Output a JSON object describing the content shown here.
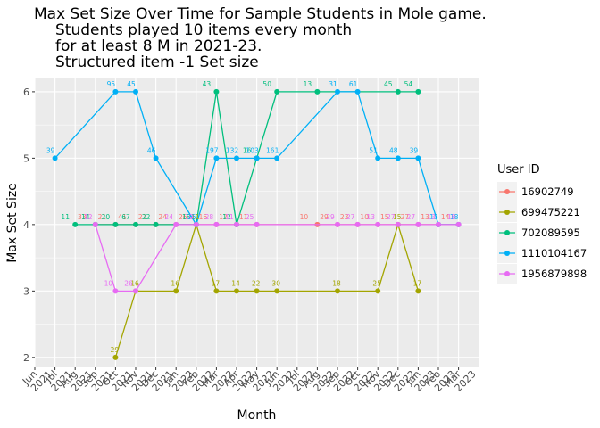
{
  "chart_data": {
    "type": "line",
    "title_lines": [
      "Max Set Size Over Time for Sample Students in Mole game.",
      "Students played 10 items every month",
      "for at least 8 M in 2021-23.",
      "Structured item -1 Set size"
    ],
    "xlabel": "Month",
    "ylabel": "Max Set Size",
    "ylim": [
      1.85,
      6.2
    ],
    "y_ticks": [
      2,
      3,
      4,
      5,
      6
    ],
    "x_ticks": [
      "2021-06",
      "2021-07",
      "2021-08",
      "2021-09",
      "2021-10",
      "2021-11",
      "2021-12",
      "2022-01",
      "2022-02",
      "2022-03",
      "2022-04",
      "2022-05",
      "2022-06",
      "2022-07",
      "2022-08",
      "2022-09",
      "2022-10",
      "2022-11",
      "2022-12",
      "2023-01",
      "2023-02",
      "2023-03"
    ],
    "x_tick_labels": [
      "Jun 2021",
      "Jul 2021",
      "Aug 2021",
      "Sep 2021",
      "Oct 2021",
      "Nov 2021",
      "Dec 2021",
      "Jan 2022",
      "Feb 2022",
      "Mar 2022",
      "Apr 2022",
      "May 2022",
      "Jun 2022",
      "Jul 2022",
      "Aug 2022",
      "Sep 2022",
      "Oct 2022",
      "Nov 2022",
      "Dec 2022",
      "Jan 2023",
      "Feb 2023",
      "Mar 2023"
    ],
    "grid": true,
    "legend": {
      "title": "User ID",
      "position": "right"
    },
    "series": [
      {
        "name": "16902749",
        "color": "#F8766D",
        "points": [
          {
            "x": "2021-09",
            "y": 4,
            "label": "33"
          },
          {
            "x": "2021-10",
            "y": 4,
            "label": "21"
          },
          {
            "x": "2021-11",
            "y": 4,
            "label": "41"
          },
          {
            "x": "2021-12",
            "y": 4,
            "label": "21"
          },
          {
            "x": "2022-01",
            "y": 4,
            "label": "24"
          },
          {
            "x": "2022-02",
            "y": 4,
            "label": "26"
          },
          {
            "x": "2022-03",
            "y": 4,
            "label": "16"
          },
          {
            "x": "2022-04",
            "y": 4,
            "label": "12"
          },
          {
            "x": "2022-05",
            "y": 4,
            "label": "11"
          },
          {
            "x": "2022-08",
            "y": 4,
            "label": "10"
          },
          {
            "x": "2022-09",
            "y": 4,
            "label": "29"
          },
          {
            "x": "2022-10",
            "y": 4,
            "label": "23"
          },
          {
            "x": "2022-11",
            "y": 4,
            "label": "10"
          },
          {
            "x": "2022-12",
            "y": 4,
            "label": "15"
          },
          {
            "x": "2023-01",
            "y": 4,
            "label": "27"
          },
          {
            "x": "2023-02",
            "y": 4,
            "label": "13"
          },
          {
            "x": "2023-03",
            "y": 4,
            "label": "14"
          }
        ]
      },
      {
        "name": "699475221",
        "color": "#A3A500",
        "points": [
          {
            "x": "2021-10",
            "y": 2,
            "label": "29"
          },
          {
            "x": "2021-11",
            "y": 3,
            "label": "16"
          },
          {
            "x": "2022-01",
            "y": 3,
            "label": "16"
          },
          {
            "x": "2022-02",
            "y": 4,
            "label": "11"
          },
          {
            "x": "2022-03",
            "y": 3,
            "label": "17"
          },
          {
            "x": "2022-04",
            "y": 3,
            "label": "14"
          },
          {
            "x": "2022-05",
            "y": 3,
            "label": "22"
          },
          {
            "x": "2022-06",
            "y": 3,
            "label": "30"
          },
          {
            "x": "2022-09",
            "y": 3,
            "label": "18"
          },
          {
            "x": "2022-11",
            "y": 3,
            "label": "25"
          },
          {
            "x": "2022-12",
            "y": 4,
            "label": "15"
          },
          {
            "x": "2023-01",
            "y": 3,
            "label": "17"
          }
        ]
      },
      {
        "name": "702089595",
        "color": "#00BF7D",
        "points": [
          {
            "x": "2021-08",
            "y": 4,
            "label": "11"
          },
          {
            "x": "2021-09",
            "y": 4,
            "label": "14"
          },
          {
            "x": "2021-10",
            "y": 4,
            "label": "20"
          },
          {
            "x": "2021-11",
            "y": 4,
            "label": "67"
          },
          {
            "x": "2021-12",
            "y": 4,
            "label": "22"
          },
          {
            "x": "2022-02",
            "y": 4,
            "label": "18"
          },
          {
            "x": "2022-03",
            "y": 6,
            "label": "43"
          },
          {
            "x": "2022-04",
            "y": 4,
            "label": "12"
          },
          {
            "x": "2022-05",
            "y": 5,
            "label": "16"
          },
          {
            "x": "2022-06",
            "y": 6,
            "label": "50"
          },
          {
            "x": "2022-08",
            "y": 6,
            "label": "13"
          },
          {
            "x": "2022-12",
            "y": 6,
            "label": "45"
          },
          {
            "x": "2023-01",
            "y": 6,
            "label": "54"
          }
        ]
      },
      {
        "name": "1110104167",
        "color": "#00B0F6",
        "points": [
          {
            "x": "2021-07",
            "y": 5,
            "label": "39"
          },
          {
            "x": "2021-10",
            "y": 6,
            "label": "95"
          },
          {
            "x": "2021-11",
            "y": 6,
            "label": "45"
          },
          {
            "x": "2021-12",
            "y": 5,
            "label": "46"
          },
          {
            "x": "2022-02",
            "y": 4,
            "label": "25"
          },
          {
            "x": "2022-03",
            "y": 5,
            "label": "197"
          },
          {
            "x": "2022-04",
            "y": 5,
            "label": "132"
          },
          {
            "x": "2022-05",
            "y": 5,
            "label": "103"
          },
          {
            "x": "2022-06",
            "y": 5,
            "label": "161"
          },
          {
            "x": "2022-09",
            "y": 6,
            "label": "31"
          },
          {
            "x": "2022-10",
            "y": 6,
            "label": "61"
          },
          {
            "x": "2022-11",
            "y": 5,
            "label": "51"
          },
          {
            "x": "2022-12",
            "y": 5,
            "label": "48"
          },
          {
            "x": "2023-01",
            "y": 5,
            "label": "39"
          },
          {
            "x": "2023-02",
            "y": 4,
            "label": "13"
          },
          {
            "x": "2023-03",
            "y": 4,
            "label": "18"
          }
        ]
      },
      {
        "name": "1956879898",
        "color": "#E76BF3",
        "points": [
          {
            "x": "2021-09",
            "y": 4,
            "label": "12"
          },
          {
            "x": "2021-10",
            "y": 3,
            "label": "10"
          },
          {
            "x": "2021-11",
            "y": 3,
            "label": "26"
          },
          {
            "x": "2022-01",
            "y": 4,
            "label": "24"
          },
          {
            "x": "2022-02",
            "y": 4,
            "label": "19"
          },
          {
            "x": "2022-03",
            "y": 4,
            "label": "28"
          },
          {
            "x": "2022-04",
            "y": 4,
            "label": "11"
          },
          {
            "x": "2022-05",
            "y": 4,
            "label": "25"
          },
          {
            "x": "2022-09",
            "y": 4,
            "label": "29"
          },
          {
            "x": "2022-10",
            "y": 4,
            "label": "27"
          },
          {
            "x": "2022-11",
            "y": 4,
            "label": "13"
          },
          {
            "x": "2022-12",
            "y": 4,
            "label": "27"
          },
          {
            "x": "2023-01",
            "y": 4,
            "label": "27"
          },
          {
            "x": "2023-02",
            "y": 4,
            "label": "13"
          },
          {
            "x": "2023-03",
            "y": 4,
            "label": "18"
          }
        ]
      }
    ]
  }
}
